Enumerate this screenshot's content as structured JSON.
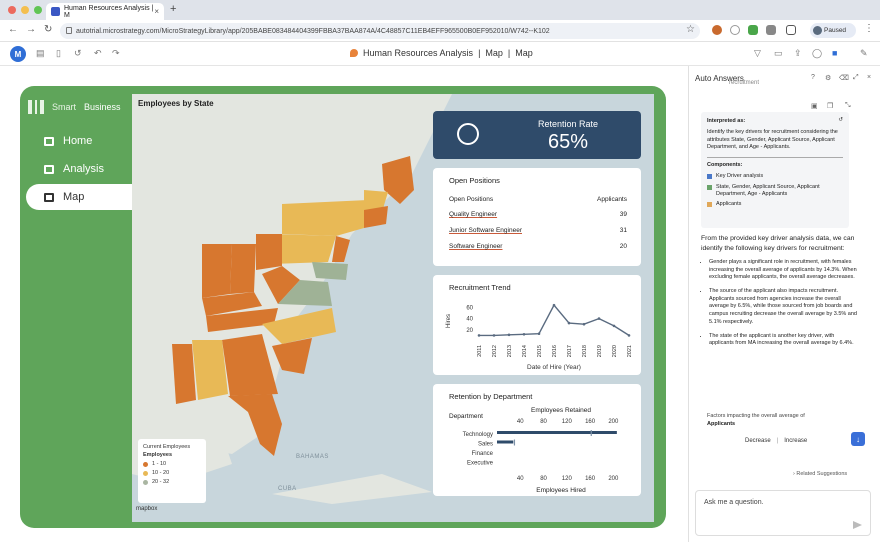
{
  "browser": {
    "tab_title": "Human Resources Analysis | M",
    "new_tab": "+",
    "url": "autotrial.microstrategy.com/MicroStrategyLibrary/app/205BABE083484404399FBBA37BAA874A/4C48857C11EB4EFF965500B0EF952010/W742--K102",
    "profile": "Paused"
  },
  "app": {
    "title": "Human Resources Analysis",
    "title_sep1": "|",
    "page1": "Map",
    "title_sep2": "|",
    "page2": "Map"
  },
  "sidebar": {
    "brand_light": "Smart",
    "brand_bold": "Business",
    "items": [
      {
        "label": "Home"
      },
      {
        "label": "Analysis"
      },
      {
        "label": "Map"
      }
    ]
  },
  "map": {
    "title": "Employees by State",
    "legend_header": "Current Employees",
    "legend_title": "Employees",
    "legend_items": [
      {
        "label": "1 - 10",
        "color": "#d7772f"
      },
      {
        "label": "10 - 20",
        "color": "#e8b956"
      },
      {
        "label": "20 - 32",
        "color": "#aab6a2"
      }
    ],
    "labels": [
      "BAHAMAS",
      "CUBA"
    ],
    "attribution": "mapbox"
  },
  "kpi": {
    "label": "Retention Rate",
    "value": "65%"
  },
  "open_positions": {
    "title": "Open Positions",
    "col1": "Open Positions",
    "col2": "Applicants",
    "rows": [
      {
        "name": "Quality Engineer",
        "value": "39"
      },
      {
        "name": "Junior Software Engineer",
        "value": "31"
      },
      {
        "name": "Software Engineer",
        "value": "20"
      }
    ]
  },
  "chart_data": [
    {
      "type": "line",
      "title": "Recruitment Trend",
      "xlabel": "Date of Hire (Year)",
      "ylabel": "Hires",
      "x": [
        "2011",
        "2012",
        "2013",
        "2014",
        "2015",
        "2016",
        "2017",
        "2018",
        "2019",
        "2020",
        "2021"
      ],
      "series": [
        {
          "values": [
            10,
            10,
            11,
            12,
            13,
            64,
            32,
            30,
            40,
            27,
            10
          ]
        }
      ],
      "yticks": [
        20,
        40,
        60
      ],
      "ylim": [
        0,
        75
      ],
      "color": "#5a6b80"
    },
    {
      "type": "bar",
      "title": "Retention by Department",
      "ylabel": "Department",
      "categories": [
        "Technology",
        "Sales",
        "Finance",
        "Executive"
      ],
      "series": [
        {
          "name": "Employees Retained",
          "values": [
            206,
            28,
            0,
            0
          ]
        },
        {
          "name": "Employees Hired",
          "values": [
            162,
            30,
            0,
            0
          ]
        }
      ],
      "xticks": [
        40,
        80,
        120,
        160,
        200
      ],
      "xlim": [
        0,
        220
      ],
      "top_axis_label": "Employees Retained",
      "bottom_axis_label": "Employees Hired",
      "color": "#2f4b6a"
    }
  ],
  "auto_answers": {
    "header": "Auto Answers",
    "top_snippet": "recruitment",
    "interpreted_title": "Interpreted as:",
    "interpreted_text": "Identify the key drivers for recruitment considering the attributes State, Gender, Applicant Source, Applicant Department, and Age - Applicants.",
    "components_title": "Components:",
    "components": [
      {
        "label": "Key Driver analysis",
        "color": "#4a78c8"
      },
      {
        "label": "State, Gender, Applicant Source, Applicant Department, Age - Applicants",
        "color": "#6aa36a"
      },
      {
        "label": "Applicants",
        "color": "#e0a85a"
      }
    ],
    "intro": "From the provided key driver analysis data, we can identify the following key drivers for recruitment:",
    "bullets": [
      "Gender plays a significant role in recruitment, with females increasing the overall average of applicants by 14.3%. When excluding female applicants, the overall average decreases.",
      "The source of the applicant also impacts recruitment. Applicants sourced from agencies increase the overall average by 6.5%, while those sourced from job boards and campus recruiting decrease the overall average by 3.5% and 5.1% respectively.",
      "The state of the applicant is another key driver, with applicants from MA increasing the overall average by 6.4%."
    ],
    "factors_text": "Factors impacting the overall average of",
    "factors_bold": "Applicants",
    "decrease": "Decrease",
    "increase": "Increase",
    "related": "Related Suggestions",
    "ask_placeholder": "Ask me a question."
  }
}
